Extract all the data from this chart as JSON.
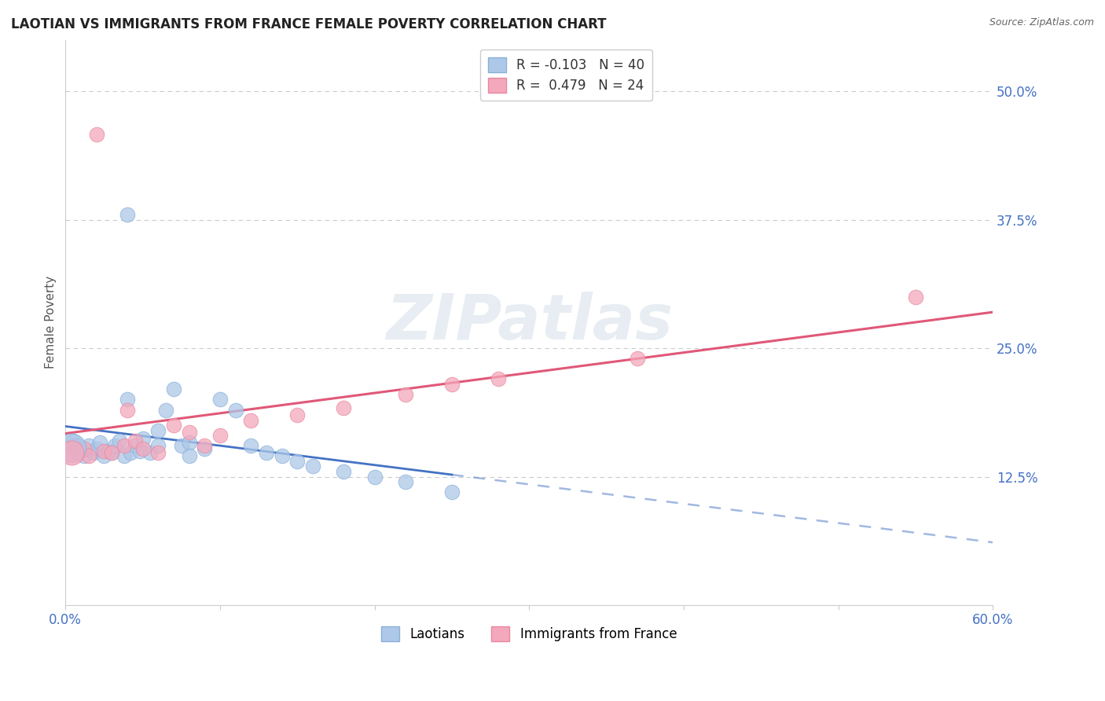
{
  "title": "LAOTIAN VS IMMIGRANTS FROM FRANCE FEMALE POVERTY CORRELATION CHART",
  "source": "Source: ZipAtlas.com",
  "ylabel": "Female Poverty",
  "xlim": [
    0.0,
    0.6
  ],
  "ylim": [
    0.0,
    0.55
  ],
  "xticks": [
    0.0,
    0.1,
    0.2,
    0.3,
    0.4,
    0.5,
    0.6
  ],
  "xticklabels": [
    "0.0%",
    "",
    "",
    "",
    "",
    "",
    "60.0%"
  ],
  "yticks_right": [
    0.125,
    0.25,
    0.375,
    0.5
  ],
  "yticklabels_right": [
    "12.5%",
    "25.0%",
    "37.5%",
    "50.0%"
  ],
  "grid_color": "#cccccc",
  "background_color": "#ffffff",
  "laotian_color": "#adc8e8",
  "france_color": "#f4a8bc",
  "laotian_edge": "#8ab0d8",
  "france_edge": "#e888a0",
  "laotian_line_color": "#4472c4",
  "france_line_color": "#e05878",
  "laotian_R": -0.103,
  "laotian_N": 40,
  "france_R": 0.479,
  "france_N": 24,
  "watermark": "ZIPatlas",
  "lao_x": [
    0.005,
    0.008,
    0.01,
    0.012,
    0.015,
    0.018,
    0.02,
    0.022,
    0.025,
    0.028,
    0.03,
    0.032,
    0.035,
    0.038,
    0.04,
    0.042,
    0.045,
    0.048,
    0.05,
    0.055,
    0.06,
    0.065,
    0.07,
    0.075,
    0.08,
    0.09,
    0.1,
    0.11,
    0.12,
    0.13,
    0.14,
    0.15,
    0.16,
    0.18,
    0.2,
    0.22,
    0.25,
    0.04,
    0.06,
    0.08
  ],
  "lao_y": [
    0.16,
    0.155,
    0.15,
    0.145,
    0.155,
    0.148,
    0.152,
    0.158,
    0.145,
    0.15,
    0.148,
    0.155,
    0.16,
    0.145,
    0.38,
    0.148,
    0.155,
    0.15,
    0.162,
    0.148,
    0.155,
    0.19,
    0.21,
    0.155,
    0.158,
    0.152,
    0.2,
    0.19,
    0.155,
    0.148,
    0.145,
    0.14,
    0.135,
    0.13,
    0.125,
    0.12,
    0.11,
    0.2,
    0.17,
    0.145
  ],
  "fr_x": [
    0.005,
    0.008,
    0.012,
    0.015,
    0.02,
    0.025,
    0.03,
    0.038,
    0.045,
    0.05,
    0.06,
    0.07,
    0.08,
    0.09,
    0.1,
    0.12,
    0.15,
    0.18,
    0.22,
    0.25,
    0.28,
    0.37,
    0.55,
    0.04
  ],
  "fr_y": [
    0.155,
    0.148,
    0.152,
    0.145,
    0.458,
    0.15,
    0.148,
    0.155,
    0.16,
    0.152,
    0.148,
    0.175,
    0.168,
    0.155,
    0.165,
    0.18,
    0.185,
    0.192,
    0.205,
    0.215,
    0.22,
    0.24,
    0.3,
    0.19
  ]
}
